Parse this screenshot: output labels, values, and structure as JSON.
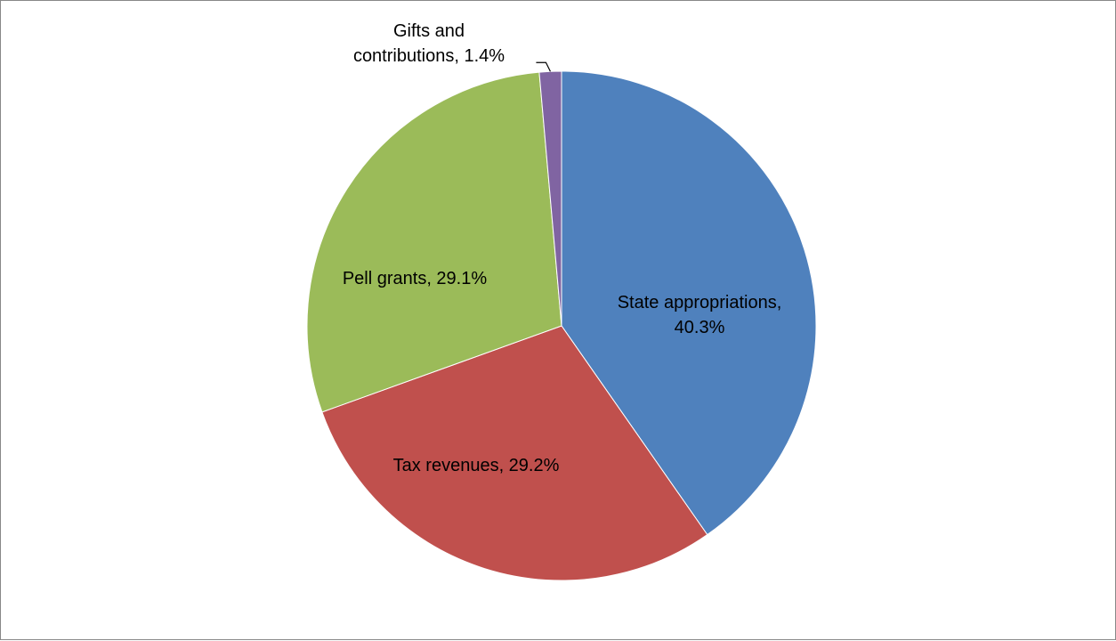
{
  "chart_data": {
    "type": "pie",
    "title": "",
    "slices": [
      {
        "label": "State appropriations",
        "value": 40.3,
        "color": "#4F81BD"
      },
      {
        "label": "Tax revenues",
        "value": 29.2,
        "color": "#C0504D"
      },
      {
        "label": "Pell grants",
        "value": 29.1,
        "color": "#9BBB59"
      },
      {
        "label": "Gifts and contributions",
        "value": 1.4,
        "color": "#8064A2"
      }
    ],
    "data_labels": [
      {
        "lines": [
          "State appropriations,",
          "40.3%"
        ]
      },
      {
        "lines": [
          "Tax revenues, 29.2%"
        ]
      },
      {
        "lines": [
          "Pell grants, 29.1%"
        ]
      },
      {
        "lines": [
          "Gifts and",
          "contributions, 1.4%"
        ]
      }
    ],
    "legend": "none"
  }
}
